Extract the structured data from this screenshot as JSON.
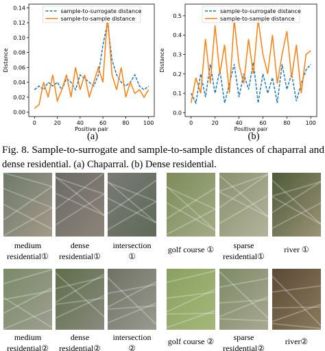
{
  "chart_data": [
    {
      "type": "line",
      "panel_label": "(a)",
      "xlabel": "Positive pair",
      "ylabel": "Distance",
      "legend": "upper center",
      "x": [
        0,
        4,
        8,
        12,
        16,
        20,
        24,
        28,
        32,
        36,
        40,
        44,
        48,
        52,
        56,
        60,
        64,
        68,
        72,
        76,
        80,
        84,
        88,
        92,
        96,
        100
      ],
      "series": [
        {
          "name": "sample-to-surrogate distance",
          "color": "#1f77b4",
          "style": "dashed",
          "values": [
            0.03,
            0.035,
            0.03,
            0.04,
            0.035,
            0.04,
            0.03,
            0.045,
            0.04,
            0.03,
            0.05,
            0.045,
            0.04,
            0.035,
            0.05,
            0.09,
            0.12,
            0.07,
            0.05,
            0.04,
            0.035,
            0.04,
            0.05,
            0.035,
            0.03,
            0.035
          ]
        },
        {
          "name": "sample-to-sample distance",
          "color": "#ff7f0e",
          "style": "solid",
          "values": [
            0.005,
            0.01,
            0.04,
            0.02,
            0.05,
            0.015,
            0.03,
            0.05,
            0.02,
            0.06,
            0.03,
            0.05,
            0.02,
            0.04,
            0.06,
            0.04,
            0.13,
            0.05,
            0.03,
            0.06,
            0.02,
            0.04,
            0.025,
            0.03,
            0.02,
            0.03
          ]
        }
      ],
      "xlim": [
        -5,
        105
      ],
      "xticks": [
        0,
        20,
        40,
        60,
        80,
        100
      ],
      "ylim": [
        -0.006,
        0.145
      ],
      "yticks": [
        {
          "value": 0,
          "label": "0.00"
        },
        0.02,
        0.04,
        0.06,
        0.08,
        {
          "value": 0.1,
          "label": "0.10"
        },
        0.12,
        0.14
      ]
    },
    {
      "type": "line",
      "panel_label": "(b)",
      "xlabel": "Positive pair",
      "ylabel": "Distance",
      "legend": "upper center",
      "x": [
        0,
        4,
        8,
        12,
        16,
        20,
        24,
        28,
        32,
        36,
        40,
        44,
        48,
        52,
        56,
        60,
        64,
        68,
        72,
        76,
        80,
        84,
        88,
        92,
        96,
        100
      ],
      "series": [
        {
          "name": "sample-to-surrogate distance",
          "color": "#1f77b4",
          "style": "dashed",
          "values": [
            0.1,
            0.05,
            0.2,
            0.08,
            0.25,
            0.1,
            0.22,
            0.05,
            0.15,
            0.25,
            0.08,
            0.2,
            0.12,
            0.26,
            0.05,
            0.2,
            0.1,
            0.18,
            0.05,
            0.25,
            0.12,
            0.2,
            0.06,
            0.15,
            0.22,
            0.25
          ]
        },
        {
          "name": "sample-to-sample distance",
          "color": "#ff7f0e",
          "style": "solid",
          "values": [
            0.05,
            0.18,
            0.1,
            0.38,
            0.15,
            0.45,
            0.2,
            0.35,
            0.1,
            0.48,
            0.25,
            0.15,
            0.38,
            0.2,
            0.48,
            0.3,
            0.2,
            0.4,
            0.15,
            0.3,
            0.42,
            0.18,
            0.35,
            0.1,
            0.3,
            0.32
          ]
        }
      ],
      "xlim": [
        -5,
        105
      ],
      "xticks": [
        0,
        20,
        40,
        60,
        80,
        100
      ],
      "ylim": [
        -0.02,
        0.56
      ],
      "yticks": [
        {
          "value": 0,
          "label": "0.0"
        },
        0.1,
        0.2,
        0.3,
        0.4,
        0.5
      ]
    }
  ],
  "caption": [
    "Fig. 8.   Sample-to-surrogate and sample-to-sample distances of chaparral and",
    "dense residential. (a) Chaparral. (b) Dense residential."
  ],
  "images": [
    {
      "label": [
        "medium",
        "residential①"
      ]
    },
    {
      "label": [
        "dense",
        "residential①"
      ]
    },
    {
      "label": [
        "intersection",
        "①"
      ]
    },
    {
      "label": [
        "golf course ①"
      ]
    },
    {
      "label": [
        "sparse",
        "residential①"
      ]
    },
    {
      "label": [
        "river ①"
      ]
    },
    {
      "label": [
        "medium",
        "residential②"
      ]
    },
    {
      "label": [
        "dense",
        "residential②"
      ]
    },
    {
      "label": [
        "intersection",
        "②"
      ]
    },
    {
      "label": [
        "golf course ②"
      ]
    },
    {
      "label": [
        "sparse",
        "residential②"
      ]
    },
    {
      "label": [
        "river②"
      ]
    }
  ]
}
